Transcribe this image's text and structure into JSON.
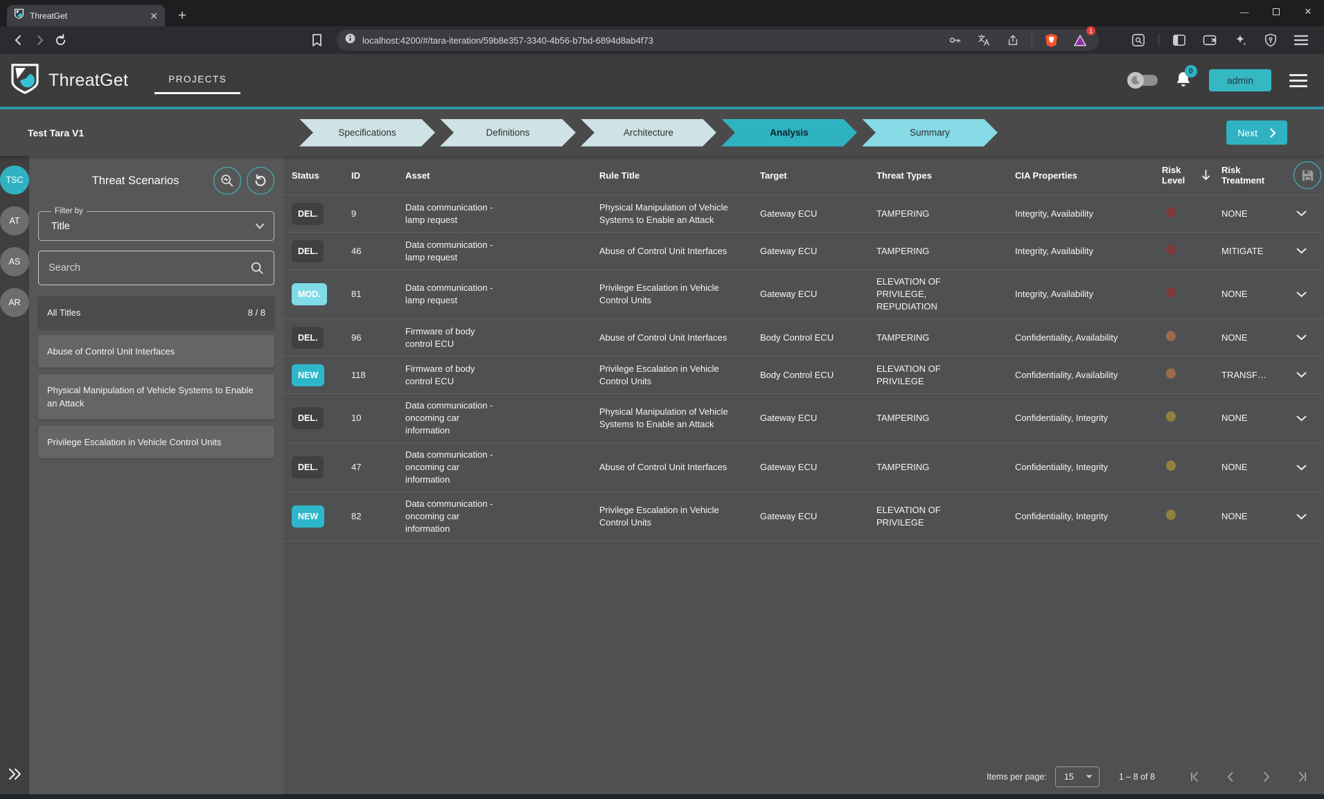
{
  "browser": {
    "tab_title": "ThreatGet",
    "url": "localhost:4200/#/tara-iteration/59b8e357-3340-4b56-b7bd-6894d8ab4f73",
    "rewards_badge": "1"
  },
  "app_header": {
    "brand": "ThreatGet",
    "nav": [
      {
        "label": "PROJECTS",
        "active": true
      }
    ],
    "notifications_badge": "0",
    "user_button_label": "admin"
  },
  "wizard": {
    "project_name": "Test Tara V1",
    "steps": [
      {
        "label": "Specifications",
        "state": "visited"
      },
      {
        "label": "Definitions",
        "state": "visited"
      },
      {
        "label": "Architecture",
        "state": "visited"
      },
      {
        "label": "Analysis",
        "state": "active"
      },
      {
        "label": "Summary",
        "state": "next"
      }
    ],
    "next_button_label": "Next"
  },
  "sidebar": {
    "rail_avatars": [
      {
        "label": "TSC",
        "active": true
      },
      {
        "label": "AT",
        "active": false
      },
      {
        "label": "AS",
        "active": false
      },
      {
        "label": "AR",
        "active": false
      }
    ],
    "panel_title": "Threat Scenarios",
    "filter": {
      "label": "Filter by",
      "value": "Title"
    },
    "search_placeholder": "Search",
    "all_titles": {
      "label": "All Titles",
      "count": "8 / 8"
    },
    "title_items": [
      "Abuse of Control Unit Interfaces",
      "Physical Manipulation of Vehicle Systems to Enable an Attack",
      "Privilege Escalation in Vehicle Control Units"
    ]
  },
  "table": {
    "columns": [
      {
        "key": "status",
        "label": "Status"
      },
      {
        "key": "id",
        "label": "ID"
      },
      {
        "key": "asset",
        "label": "Asset"
      },
      {
        "key": "rule_title",
        "label": "Rule Title"
      },
      {
        "key": "target",
        "label": "Target"
      },
      {
        "key": "threat_types",
        "label": "Threat Types"
      },
      {
        "key": "cia",
        "label": "CIA Properties"
      },
      {
        "key": "risk_level",
        "label": "Risk Level",
        "sortable": true
      },
      {
        "key": "risk_treatment",
        "label": "Risk Treatment"
      }
    ],
    "rows": [
      {
        "status": "DEL.",
        "status_type": "del",
        "id": "9",
        "asset": "Data communication - lamp request",
        "rule_title": "Physical Manipulation of Vehicle Systems to Enable an Attack",
        "target": "Gateway ECU",
        "threat_types": "TAMPERING",
        "cia": "Integrity, Availability",
        "risk": "high",
        "risk_treatment": "NONE"
      },
      {
        "status": "DEL.",
        "status_type": "del",
        "id": "46",
        "asset": "Data communication - lamp request",
        "rule_title": "Abuse of Control Unit Interfaces",
        "target": "Gateway ECU",
        "threat_types": "TAMPERING",
        "cia": "Integrity, Availability",
        "risk": "high",
        "risk_treatment": "MITIGATE"
      },
      {
        "status": "MOD.",
        "status_type": "mod",
        "id": "81",
        "asset": "Data communication - lamp request",
        "rule_title": "Privilege Escalation in Vehicle Control Units",
        "target": "Gateway ECU",
        "threat_types": "ELEVATION OF PRIVILEGE, REPUDIATION",
        "cia": "Integrity, Availability",
        "risk": "high",
        "risk_treatment": "NONE"
      },
      {
        "status": "DEL.",
        "status_type": "del",
        "id": "96",
        "asset": "Firmware of body control ECU",
        "rule_title": "Abuse of Control Unit Interfaces",
        "target": "Body Control ECU",
        "threat_types": "TAMPERING",
        "cia": "Confidentiality, Availability",
        "risk": "medium",
        "risk_treatment": "NONE"
      },
      {
        "status": "NEW",
        "status_type": "new",
        "id": "118",
        "asset": "Firmware of body control ECU",
        "rule_title": "Privilege Escalation in Vehicle Control Units",
        "target": "Body Control ECU",
        "threat_types": "ELEVATION OF PRIVILEGE",
        "cia": "Confidentiality, Availability",
        "risk": "medium",
        "risk_treatment": "TRANSF…"
      },
      {
        "status": "DEL.",
        "status_type": "del",
        "id": "10",
        "asset": "Data communication - oncoming car information",
        "rule_title": "Physical Manipulation of Vehicle Systems to Enable an Attack",
        "target": "Gateway ECU",
        "threat_types": "TAMPERING",
        "cia": "Confidentiality, Integrity",
        "risk": "low",
        "risk_treatment": "NONE"
      },
      {
        "status": "DEL.",
        "status_type": "del",
        "id": "47",
        "asset": "Data communication - oncoming car information",
        "rule_title": "Abuse of Control Unit Interfaces",
        "target": "Gateway ECU",
        "threat_types": "TAMPERING",
        "cia": "Confidentiality, Integrity",
        "risk": "low",
        "risk_treatment": "NONE"
      },
      {
        "status": "NEW",
        "status_type": "new",
        "id": "82",
        "asset": "Data communication - oncoming car information",
        "rule_title": "Privilege Escalation in Vehicle Control Units",
        "target": "Gateway ECU",
        "threat_types": "ELEVATION OF PRIVILEGE",
        "cia": "Confidentiality, Integrity",
        "risk": "low",
        "risk_treatment": "NONE"
      }
    ]
  },
  "pagination": {
    "items_per_page_label": "Items per page:",
    "items_per_page_value": "15",
    "range_label": "1 – 8 of 8"
  },
  "colors": {
    "accent": "#2fb3c3",
    "risk_high": "#7d3a3a",
    "risk_medium": "#9c6b4b",
    "risk_low": "#91803f",
    "status_del": "#3f4042",
    "status_mod": "#7fdbe8",
    "status_new": "#2eb6ca"
  }
}
